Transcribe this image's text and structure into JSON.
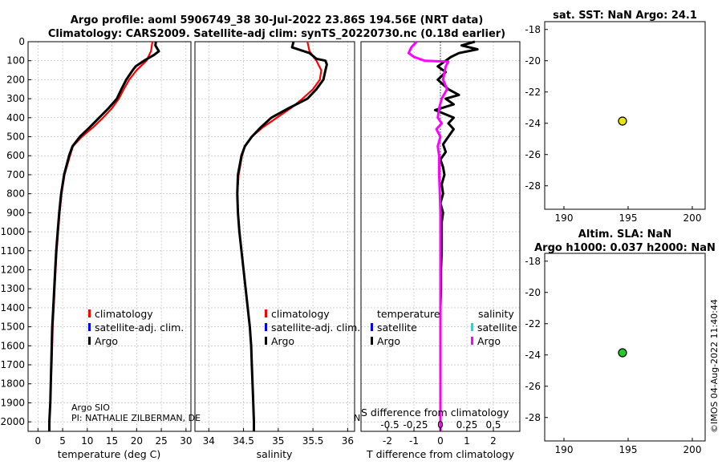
{
  "header": {
    "title_line1": "Argo profile: aoml 5906749_38 30-Jul-2022 23.86S 194.56E (NRT data)",
    "title_line2": "Climatology: CARS2009. Satellite-adj clim: synTS_20220730.nc (0.18d earlier)"
  },
  "colors": {
    "climatology": "#ff0000",
    "satellite": "#0000ff",
    "argo": "#000000",
    "salinity_argo": "#ff00ff",
    "salinity_sat": "#00e5e5",
    "sst_marker": "#e6e600",
    "sla_marker": "#22cc22"
  },
  "labels": {
    "climatology": "climatology",
    "satellite_adj": "satellite-adj. clim.",
    "argo": "Argo",
    "temperature": "temperature",
    "salinity": "salinity",
    "satellite": "satellite",
    "argo_sio": "Argo SIO",
    "pi": "PI: NATHALIE ZILBERMAN, DE",
    "s_diff": "S difference from climatology",
    "n_frag": "N",
    "imos": "©IMOS 04-Aug-2022 11:40:44"
  },
  "chart_data": [
    {
      "type": "line",
      "id": "temperature",
      "xlabel": "temperature (deg C)",
      "xlim": [
        -2,
        31
      ],
      "ylim": [
        2050,
        0
      ],
      "xticks": [
        "0",
        "5",
        "10",
        "15",
        "20",
        "25",
        "30"
      ],
      "yticks": [
        "0",
        "100",
        "200",
        "300",
        "400",
        "500",
        "600",
        "700",
        "800",
        "900",
        "1000",
        "1100",
        "1200",
        "1300",
        "1400",
        "1500",
        "1600",
        "1700",
        "1800",
        "1900",
        "2000"
      ],
      "series": [
        {
          "name": "climatology",
          "color": "#ff0000",
          "depth": [
            0,
            50,
            100,
            150,
            200,
            250,
            300,
            350,
            400,
            450,
            500,
            550,
            600,
            700,
            800,
            900,
            1000,
            1100,
            1200,
            1300,
            1400,
            1500,
            1600,
            1700,
            1800,
            1900,
            2000,
            2050
          ],
          "values": [
            23.2,
            22.9,
            22.0,
            20.0,
            18.5,
            17.4,
            16.4,
            15.0,
            13.2,
            11.2,
            8.9,
            7.1,
            6.5,
            5.4,
            4.8,
            4.4,
            4.1,
            3.8,
            3.6,
            3.4,
            3.2,
            3.0,
            2.9,
            2.8,
            2.6,
            2.5,
            2.3,
            2.3
          ]
        },
        {
          "name": "Argo",
          "color": "#000000",
          "depth": [
            0,
            20,
            50,
            70,
            100,
            130,
            150,
            200,
            250,
            300,
            350,
            400,
            450,
            500,
            550,
            600,
            700,
            800,
            900,
            1000,
            1100,
            1200,
            1300,
            1400,
            1500,
            1600,
            1700,
            1800,
            1900,
            2000,
            2050
          ],
          "values": [
            23.9,
            23.8,
            24.5,
            23.5,
            21.5,
            19.8,
            19.2,
            17.9,
            16.9,
            16.0,
            14.3,
            12.4,
            10.5,
            8.5,
            7.0,
            6.3,
            5.3,
            4.7,
            4.3,
            4.0,
            3.7,
            3.5,
            3.3,
            3.1,
            2.9,
            2.8,
            2.7,
            2.6,
            2.5,
            2.3,
            2.3
          ]
        }
      ]
    },
    {
      "type": "line",
      "id": "salinity",
      "xlabel": "salinity",
      "xlim": [
        33.8,
        36.1
      ],
      "ylim": [
        2050,
        0
      ],
      "xticks": [
        "34",
        "34.5",
        "35",
        "35.5",
        "36"
      ],
      "series": [
        {
          "name": "climatology",
          "color": "#ff0000",
          "depth": [
            0,
            50,
            100,
            150,
            200,
            250,
            300,
            350,
            400,
            450,
            500,
            550,
            600,
            700,
            800,
            900,
            1000,
            1100,
            1200,
            1300,
            1400,
            1500,
            1600,
            1700,
            1800,
            1900,
            2000,
            2050
          ],
          "values": [
            35.42,
            35.45,
            35.55,
            35.62,
            35.6,
            35.5,
            35.35,
            35.18,
            34.98,
            34.78,
            34.62,
            34.52,
            34.48,
            34.43,
            34.41,
            34.42,
            34.44,
            34.47,
            34.5,
            34.53,
            34.56,
            34.59,
            34.61,
            34.62,
            34.63,
            34.64,
            34.65,
            34.65
          ]
        },
        {
          "name": "Argo",
          "color": "#000000",
          "depth": [
            0,
            30,
            60,
            90,
            100,
            120,
            150,
            200,
            250,
            300,
            350,
            400,
            450,
            500,
            550,
            600,
            700,
            800,
            900,
            1000,
            1100,
            1200,
            1300,
            1400,
            1500,
            1600,
            1700,
            1800,
            1900,
            2000,
            2050
          ],
          "values": [
            35.22,
            35.2,
            35.45,
            35.55,
            35.68,
            35.7,
            35.68,
            35.65,
            35.55,
            35.42,
            35.15,
            34.9,
            34.75,
            34.62,
            34.52,
            34.47,
            34.42,
            34.41,
            34.42,
            34.44,
            34.47,
            34.5,
            34.53,
            34.56,
            34.59,
            34.61,
            34.62,
            34.63,
            34.64,
            34.65,
            34.65
          ]
        }
      ]
    },
    {
      "type": "line",
      "id": "difference",
      "xlabel": "T difference from climatology",
      "xlim": [
        -3,
        3
      ],
      "ylim": [
        2050,
        0
      ],
      "xticks": [
        "-2",
        "-1",
        "0",
        "1",
        "2"
      ],
      "s_ticks": [
        "-0.5",
        "-0.25",
        "0",
        "0.25",
        "0.5"
      ],
      "series": [
        {
          "name": "temperature Argo",
          "color": "#000000",
          "depth": [
            0,
            20,
            40,
            60,
            80,
            100,
            130,
            160,
            200,
            250,
            280,
            300,
            330,
            360,
            400,
            430,
            460,
            500,
            540,
            580,
            620,
            660,
            700,
            750,
            800,
            850,
            900,
            950,
            1000,
            1100,
            1200,
            1300,
            1400,
            1500,
            1700,
            1900,
            2000,
            2050
          ],
          "values": [
            1.3,
            0.8,
            1.4,
            0.7,
            0.4,
            0.2,
            -0.1,
            0.2,
            -0.1,
            0.3,
            0.7,
            0.2,
            0.5,
            -0.2,
            0.5,
            0.3,
            0.5,
            0.3,
            0.1,
            0.2,
            0.0,
            0.1,
            0.15,
            0.05,
            0.1,
            0.0,
            0.1,
            0.05,
            0.05,
            0.05,
            0.02,
            0.02,
            0.0,
            0.0,
            0.0,
            0.0,
            0.0,
            0.0
          ]
        },
        {
          "name": "salinity Argo",
          "color": "#ff00ff",
          "depth": [
            0,
            30,
            60,
            80,
            100,
            105,
            130,
            200,
            250,
            300,
            350,
            400,
            430,
            460,
            500,
            550,
            600,
            700,
            800,
            900,
            1000,
            1200,
            1400,
            1600,
            1800,
            2000,
            2050
          ],
          "values": [
            -0.9,
            -1.1,
            -1.2,
            -1.0,
            -0.6,
            0.3,
            0.2,
            0.1,
            0.25,
            0.05,
            -0.05,
            -0.1,
            0.05,
            -0.15,
            0.0,
            -0.1,
            -0.05,
            -0.05,
            -0.02,
            0.0,
            0.0,
            0.0,
            0.0,
            0.0,
            0.0,
            0.0,
            0.0
          ]
        }
      ]
    },
    {
      "type": "scatter",
      "id": "sst",
      "title": "sat. SST: NaN Argo: 24.1",
      "xlim": [
        188.5,
        201
      ],
      "ylim": [
        -29.5,
        -17.5
      ],
      "xticks": [
        "190",
        "195",
        "200"
      ],
      "yticks": [
        "-18",
        "-20",
        "-22",
        "-24",
        "-26",
        "-28"
      ],
      "points": [
        {
          "x": 194.56,
          "y": -23.86,
          "color": "#e6e600"
        }
      ]
    },
    {
      "type": "scatter",
      "id": "sla",
      "title_line1": "Altim. SLA: NaN",
      "title_line2": "Argo h1000: 0.037 h2000: NaN",
      "xlim": [
        188.5,
        201
      ],
      "ylim": [
        -29.5,
        -17.5
      ],
      "xticks": [
        "190",
        "195",
        "200"
      ],
      "yticks": [
        "-18",
        "-20",
        "-22",
        "-24",
        "-26",
        "-28"
      ],
      "points": [
        {
          "x": 194.56,
          "y": -23.86,
          "color": "#22cc22"
        }
      ]
    }
  ]
}
